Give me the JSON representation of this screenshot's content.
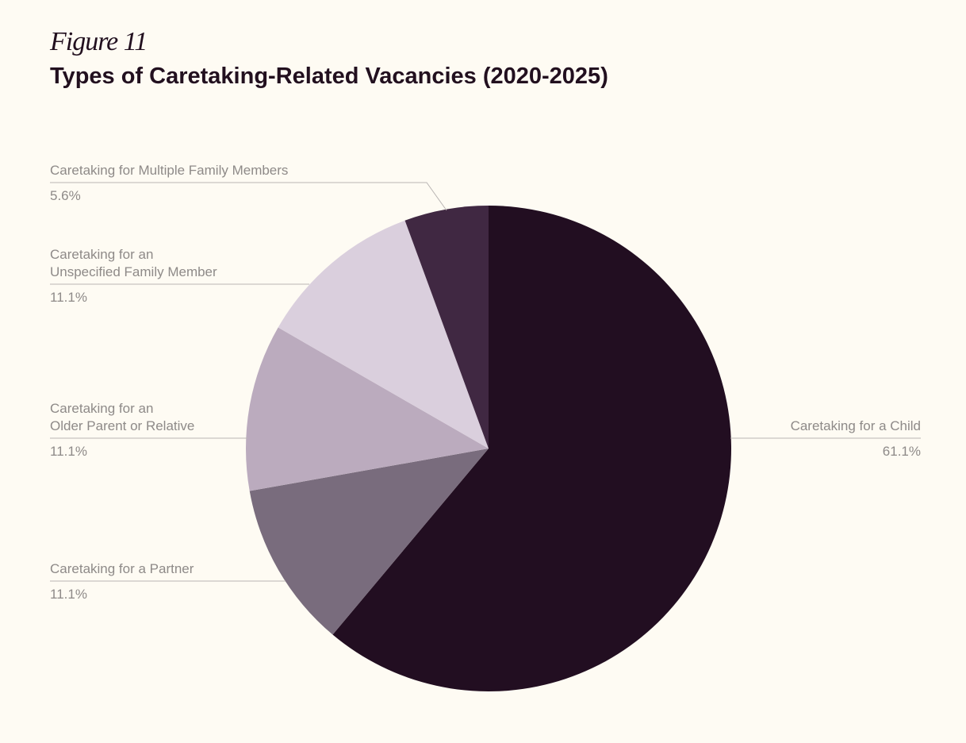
{
  "figure": {
    "label": "Figure 11",
    "title": "Types of Caretaking-Related Vacancies (2020-2025)"
  },
  "chart_data": {
    "type": "pie",
    "title": "Types of Caretaking-Related Vacancies (2020-2025)",
    "start_angle": "12 o'clock",
    "direction": "clockwise",
    "slices": [
      {
        "key": "child",
        "label_lines": [
          "Caretaking for a Child"
        ],
        "value": 61.1,
        "value_label": "61.1%",
        "color": "#220e21"
      },
      {
        "key": "partner",
        "label_lines": [
          "Caretaking for a Partner"
        ],
        "value": 11.1,
        "value_label": "11.1%",
        "color": "#796c7d"
      },
      {
        "key": "older-parent",
        "label_lines": [
          "Caretaking for an",
          "Older Parent or Relative"
        ],
        "value": 11.1,
        "value_label": "11.1%",
        "color": "#bbabbe"
      },
      {
        "key": "unspecified",
        "label_lines": [
          "Caretaking for an",
          "Unspecified Family Member"
        ],
        "value": 11.1,
        "value_label": "11.1%",
        "color": "#dacfdd"
      },
      {
        "key": "multiple",
        "label_lines": [
          "Caretaking for Multiple Family Members"
        ],
        "value": 5.6,
        "value_label": "5.6%",
        "color": "#402842"
      }
    ],
    "label_line_color": "#b9b5b3",
    "label_text_color": "#8e8a88"
  }
}
